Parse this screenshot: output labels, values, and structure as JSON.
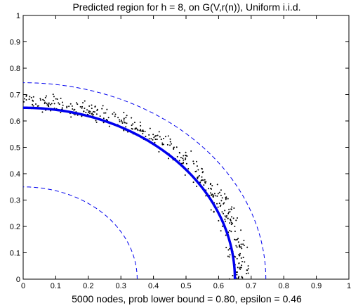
{
  "chart_data": {
    "type": "scatter",
    "title": "Predicted region for h = 8, on G(V,r(n)), Uniform i.i.d.",
    "xlabel": "5000 nodes, prob lower bound = 0.80, epsilon = 0.46",
    "ylabel": "",
    "xlim": [
      0,
      1
    ],
    "ylim": [
      0,
      1
    ],
    "xticks": [
      "0",
      "0.1",
      "0.2",
      "0.3",
      "0.4",
      "0.5",
      "0.6",
      "0.7",
      "0.8",
      "0.9",
      "1"
    ],
    "yticks": [
      "0",
      "0.1",
      "0.2",
      "0.3",
      "0.4",
      "0.5",
      "0.6",
      "0.7",
      "0.8",
      "0.9",
      "1"
    ],
    "grid": false,
    "curves": [
      {
        "kind": "arc",
        "style": "solid-thick",
        "radius": 0.65,
        "color": "#0000ee"
      },
      {
        "kind": "arc",
        "style": "dashed",
        "radius": 0.35,
        "color": "#0000ee"
      },
      {
        "kind": "arc",
        "style": "dashed",
        "radius": 0.745,
        "color": "#0000ee"
      }
    ],
    "scatter": {
      "color": "#000000",
      "description_radius_range": [
        0.63,
        0.71
      ],
      "count": 420
    }
  }
}
